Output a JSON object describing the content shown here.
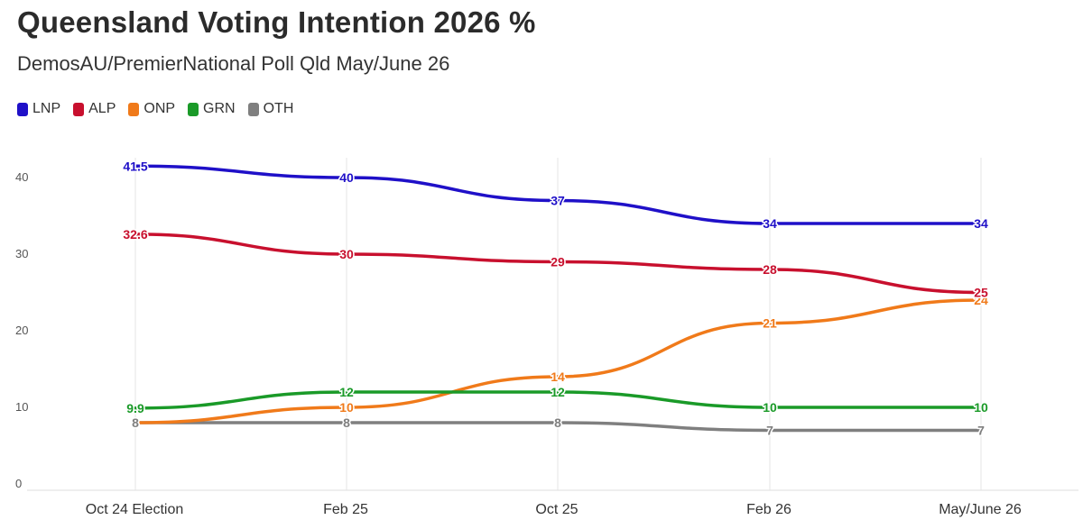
{
  "chart_data": {
    "type": "line",
    "title": "Queensland Voting Intention 2026 %",
    "subtitle": "DemosAU/PremierNational Poll Qld May/June 26",
    "x": [
      "Oct 24 Election",
      "Feb 25",
      "Oct 25",
      "Feb 26",
      "May/June 26"
    ],
    "ylim": [
      0,
      40
    ],
    "yticks": [
      0,
      10,
      20,
      30,
      40
    ],
    "grid": "vertical",
    "legend_position": "top-left",
    "series": [
      {
        "name": "LNP",
        "color": "#1f10c8",
        "values": [
          41.5,
          40,
          37,
          34,
          34
        ],
        "labels": [
          "41.5",
          "40",
          "37",
          "34",
          "34"
        ]
      },
      {
        "name": "ALP",
        "color": "#c8102e",
        "values": [
          32.6,
          30,
          29,
          28,
          25
        ],
        "labels": [
          "32.6",
          "30",
          "29",
          "28",
          "25"
        ]
      },
      {
        "name": "ONP",
        "color": "#f07a1a",
        "values": [
          8,
          10,
          14,
          21,
          24
        ],
        "labels": [
          "",
          "10",
          "14",
          "21",
          "24"
        ]
      },
      {
        "name": "GRN",
        "color": "#1a9a28",
        "values": [
          9.9,
          12,
          12,
          10,
          10
        ],
        "labels": [
          "9.9",
          "12",
          "12",
          "10",
          "10"
        ]
      },
      {
        "name": "OTH",
        "color": "#7f7f7f",
        "values": [
          8,
          8,
          8,
          7,
          7
        ],
        "labels": [
          "8",
          "8",
          "8",
          "7",
          "7"
        ]
      }
    ]
  }
}
